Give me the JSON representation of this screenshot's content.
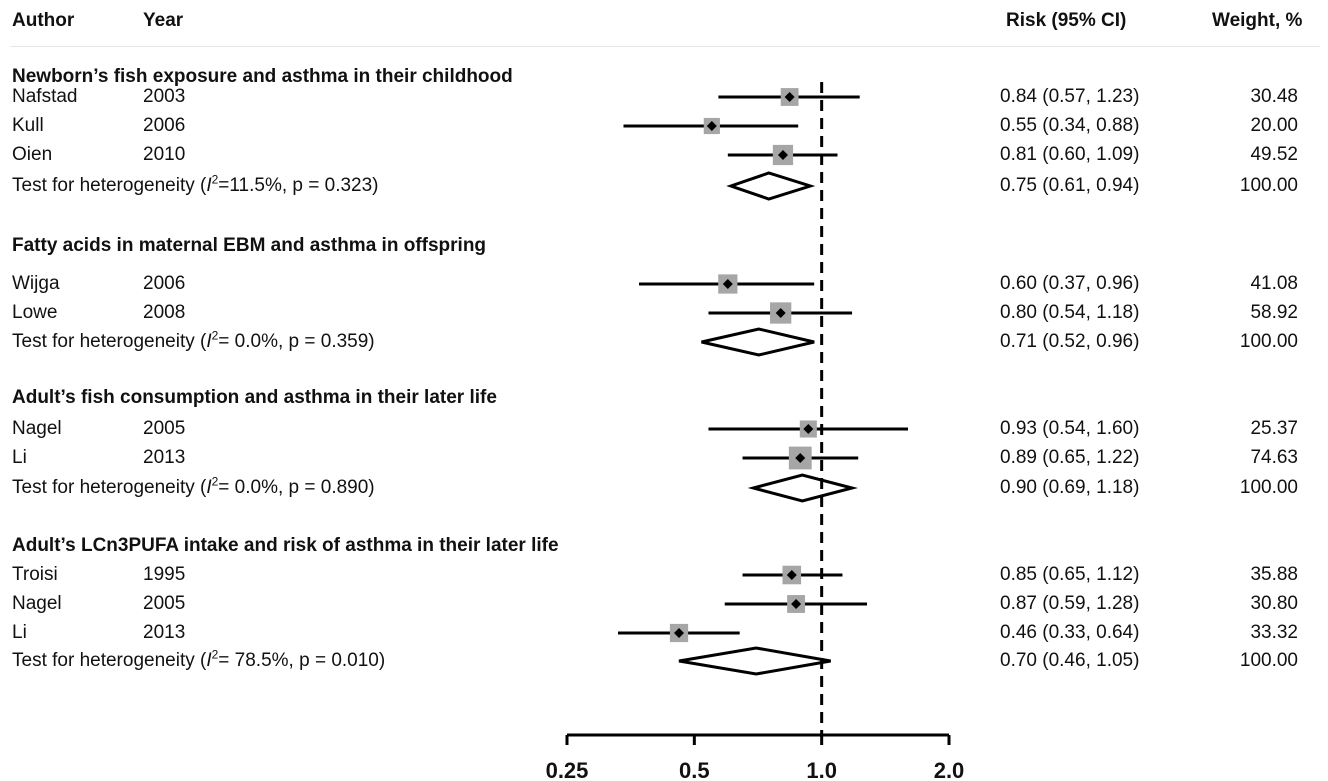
{
  "header": {
    "author": "Author",
    "year": "Year",
    "risk": "Risk (95% CI)",
    "weight": "Weight, %"
  },
  "chart_data": {
    "type": "forest",
    "x_scale": "log",
    "reference_line": 1.0,
    "x_ticks": [
      "0.25",
      "0.5",
      "1.0",
      "2.0"
    ],
    "groups": [
      {
        "title": "Newborn’s fish exposure and asthma in their childhood",
        "studies": [
          {
            "author": "Nafstad",
            "year": "2003",
            "rr": 0.84,
            "lo": 0.57,
            "hi": 1.23,
            "ci_text": "0.84 (0.57, 1.23)",
            "weight": "30.48"
          },
          {
            "author": "Kull",
            "year": "2006",
            "rr": 0.55,
            "lo": 0.34,
            "hi": 0.88,
            "ci_text": "0.55 (0.34, 0.88)",
            "weight": "20.00"
          },
          {
            "author": "Oien",
            "year": "2010",
            "rr": 0.81,
            "lo": 0.6,
            "hi": 1.09,
            "ci_text": "0.81 (0.60, 1.09)",
            "weight": "49.52"
          }
        ],
        "pooled": {
          "label_prefix": "Test for heterogeneity (",
          "i2_symbol": "I",
          "sup": "2",
          "label_suffix": "=11.5%, p = 0.323)",
          "rr": 0.75,
          "lo": 0.61,
          "hi": 0.94,
          "ci_text": "0.75 (0.61, 0.94)",
          "weight": "100.00"
        }
      },
      {
        "title": "Fatty acids in maternal EBM and asthma in offspring",
        "studies": [
          {
            "author": "Wijga",
            "year": "2006",
            "rr": 0.6,
            "lo": 0.37,
            "hi": 0.96,
            "ci_text": "0.60 (0.37, 0.96)",
            "weight": "41.08"
          },
          {
            "author": "Lowe",
            "year": "2008",
            "rr": 0.8,
            "lo": 0.54,
            "hi": 1.18,
            "ci_text": "0.80 (0.54, 1.18)",
            "weight": "58.92"
          }
        ],
        "pooled": {
          "label_prefix": "Test for heterogeneity (",
          "i2_symbol": "I",
          "sup": "2",
          "label_suffix": "= 0.0%, p = 0.359)",
          "rr": 0.71,
          "lo": 0.52,
          "hi": 0.96,
          "ci_text": "0.71 (0.52, 0.96)",
          "weight": "100.00"
        }
      },
      {
        "title": "Adult’s fish consumption and asthma in their later life",
        "studies": [
          {
            "author": "Nagel",
            "year": "2005",
            "rr": 0.93,
            "lo": 0.54,
            "hi": 1.6,
            "ci_text": "0.93 (0.54, 1.60)",
            "weight": "25.37"
          },
          {
            "author": "Li",
            "year": "2013",
            "rr": 0.89,
            "lo": 0.65,
            "hi": 1.22,
            "ci_text": "0.89 (0.65, 1.22)",
            "weight": "74.63"
          }
        ],
        "pooled": {
          "label_prefix": "Test for heterogeneity (",
          "i2_symbol": "I",
          "sup": "2",
          "label_suffix": "= 0.0%, p = 0.890)",
          "rr": 0.9,
          "lo": 0.69,
          "hi": 1.18,
          "ci_text": "0.90 (0.69, 1.18)",
          "weight": "100.00"
        }
      },
      {
        "title": "Adult’s LCn3PUFA intake and risk of asthma in their later life",
        "studies": [
          {
            "author": "Troisi",
            "year": "1995",
            "rr": 0.85,
            "lo": 0.65,
            "hi": 1.12,
            "ci_text": "0.85 (0.65, 1.12)",
            "weight": "35.88"
          },
          {
            "author": "Nagel",
            "year": "2005",
            "rr": 0.87,
            "lo": 0.59,
            "hi": 1.28,
            "ci_text": "0.87 (0.59, 1.28)",
            "weight": "30.80"
          },
          {
            "author": "Li",
            "year": "2013",
            "rr": 0.46,
            "lo": 0.33,
            "hi": 0.64,
            "ci_text": "0.46 (0.33, 0.64)",
            "weight": "33.32"
          }
        ],
        "pooled": {
          "label_prefix": "Test for heterogeneity (",
          "i2_symbol": "I",
          "sup": "2",
          "label_suffix": "= 78.5%, p = 0.010)",
          "rr": 0.7,
          "lo": 0.46,
          "hi": 1.05,
          "ci_text": "0.70 (0.46, 1.05)",
          "weight": "100.00"
        }
      }
    ]
  },
  "colors": {
    "line": "#000000",
    "box": "#a6a6a6",
    "point": "#000000"
  }
}
